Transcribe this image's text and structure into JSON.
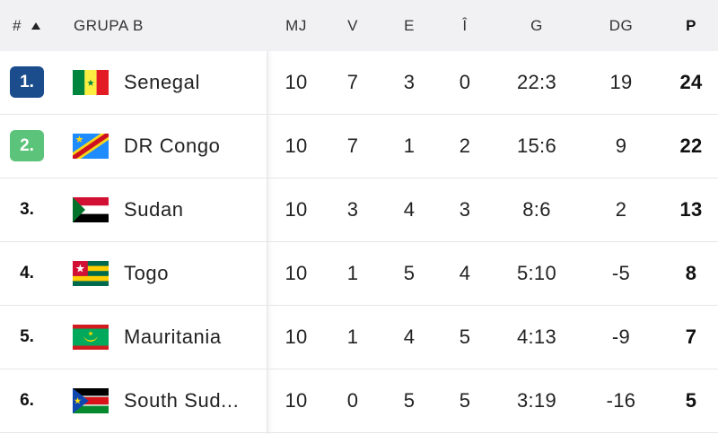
{
  "header": {
    "rank": "#",
    "team": "GRUPA B",
    "columns": [
      "MJ",
      "V",
      "E",
      "Î",
      "G",
      "DG",
      "P"
    ]
  },
  "rows": [
    {
      "rank": "1.",
      "team": "Senegal",
      "stats": [
        "10",
        "7",
        "3",
        "0",
        "22:3",
        "19",
        "24"
      ]
    },
    {
      "rank": "2.",
      "team": "DR Congo",
      "stats": [
        "10",
        "7",
        "1",
        "2",
        "15:6",
        "9",
        "22"
      ]
    },
    {
      "rank": "3.",
      "team": "Sudan",
      "stats": [
        "10",
        "3",
        "4",
        "3",
        "8:6",
        "2",
        "13"
      ]
    },
    {
      "rank": "4.",
      "team": "Togo",
      "stats": [
        "10",
        "1",
        "5",
        "4",
        "5:10",
        "-5",
        "8"
      ]
    },
    {
      "rank": "5.",
      "team": "Mauritania",
      "stats": [
        "10",
        "1",
        "4",
        "5",
        "4:13",
        "-9",
        "7"
      ]
    },
    {
      "rank": "6.",
      "team": "South Sud...",
      "stats": [
        "10",
        "0",
        "5",
        "5",
        "3:19",
        "-16",
        "5"
      ]
    }
  ]
}
